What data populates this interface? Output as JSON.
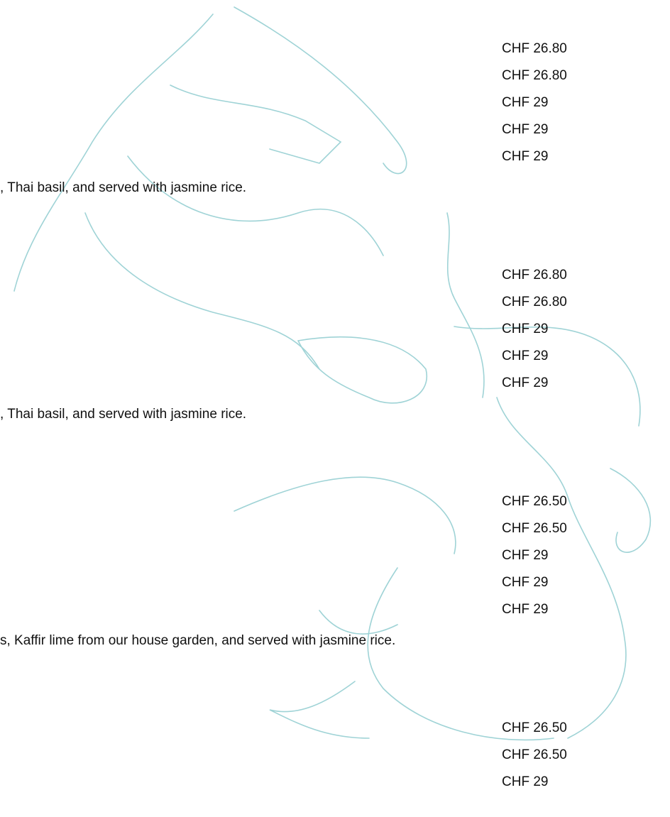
{
  "groups": [
    {
      "prices": [
        "CHF 26.80",
        "CHF 26.80",
        "CHF 29",
        "CHF 29",
        "CHF 29"
      ],
      "description": ", Thai basil, and served with jasmine rice."
    },
    {
      "prices": [
        "CHF 26.80",
        "CHF 26.80",
        "CHF 29",
        "CHF 29",
        "CHF 29"
      ],
      "description": ", Thai basil, and served with jasmine rice."
    },
    {
      "prices": [
        "CHF 26.50",
        "CHF 26.50",
        "CHF 29",
        "CHF 29",
        "CHF 29"
      ],
      "description": "s, Kaffir lime from our house garden, and served with jasmine rice."
    },
    {
      "prices": [
        "CHF 26.50",
        "CHF 26.50",
        "CHF 29"
      ]
    }
  ]
}
